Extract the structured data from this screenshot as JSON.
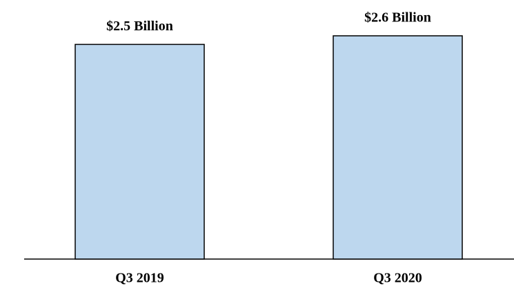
{
  "chart_data": {
    "type": "bar",
    "categories": [
      "Q3 2019",
      "Q3 2020"
    ],
    "values": [
      2.5,
      2.6
    ],
    "value_labels": [
      "$2.5 Billion",
      "$2.6 Billion"
    ],
    "color": "#bdd7ee",
    "ylim": [
      0,
      2.7
    ]
  }
}
